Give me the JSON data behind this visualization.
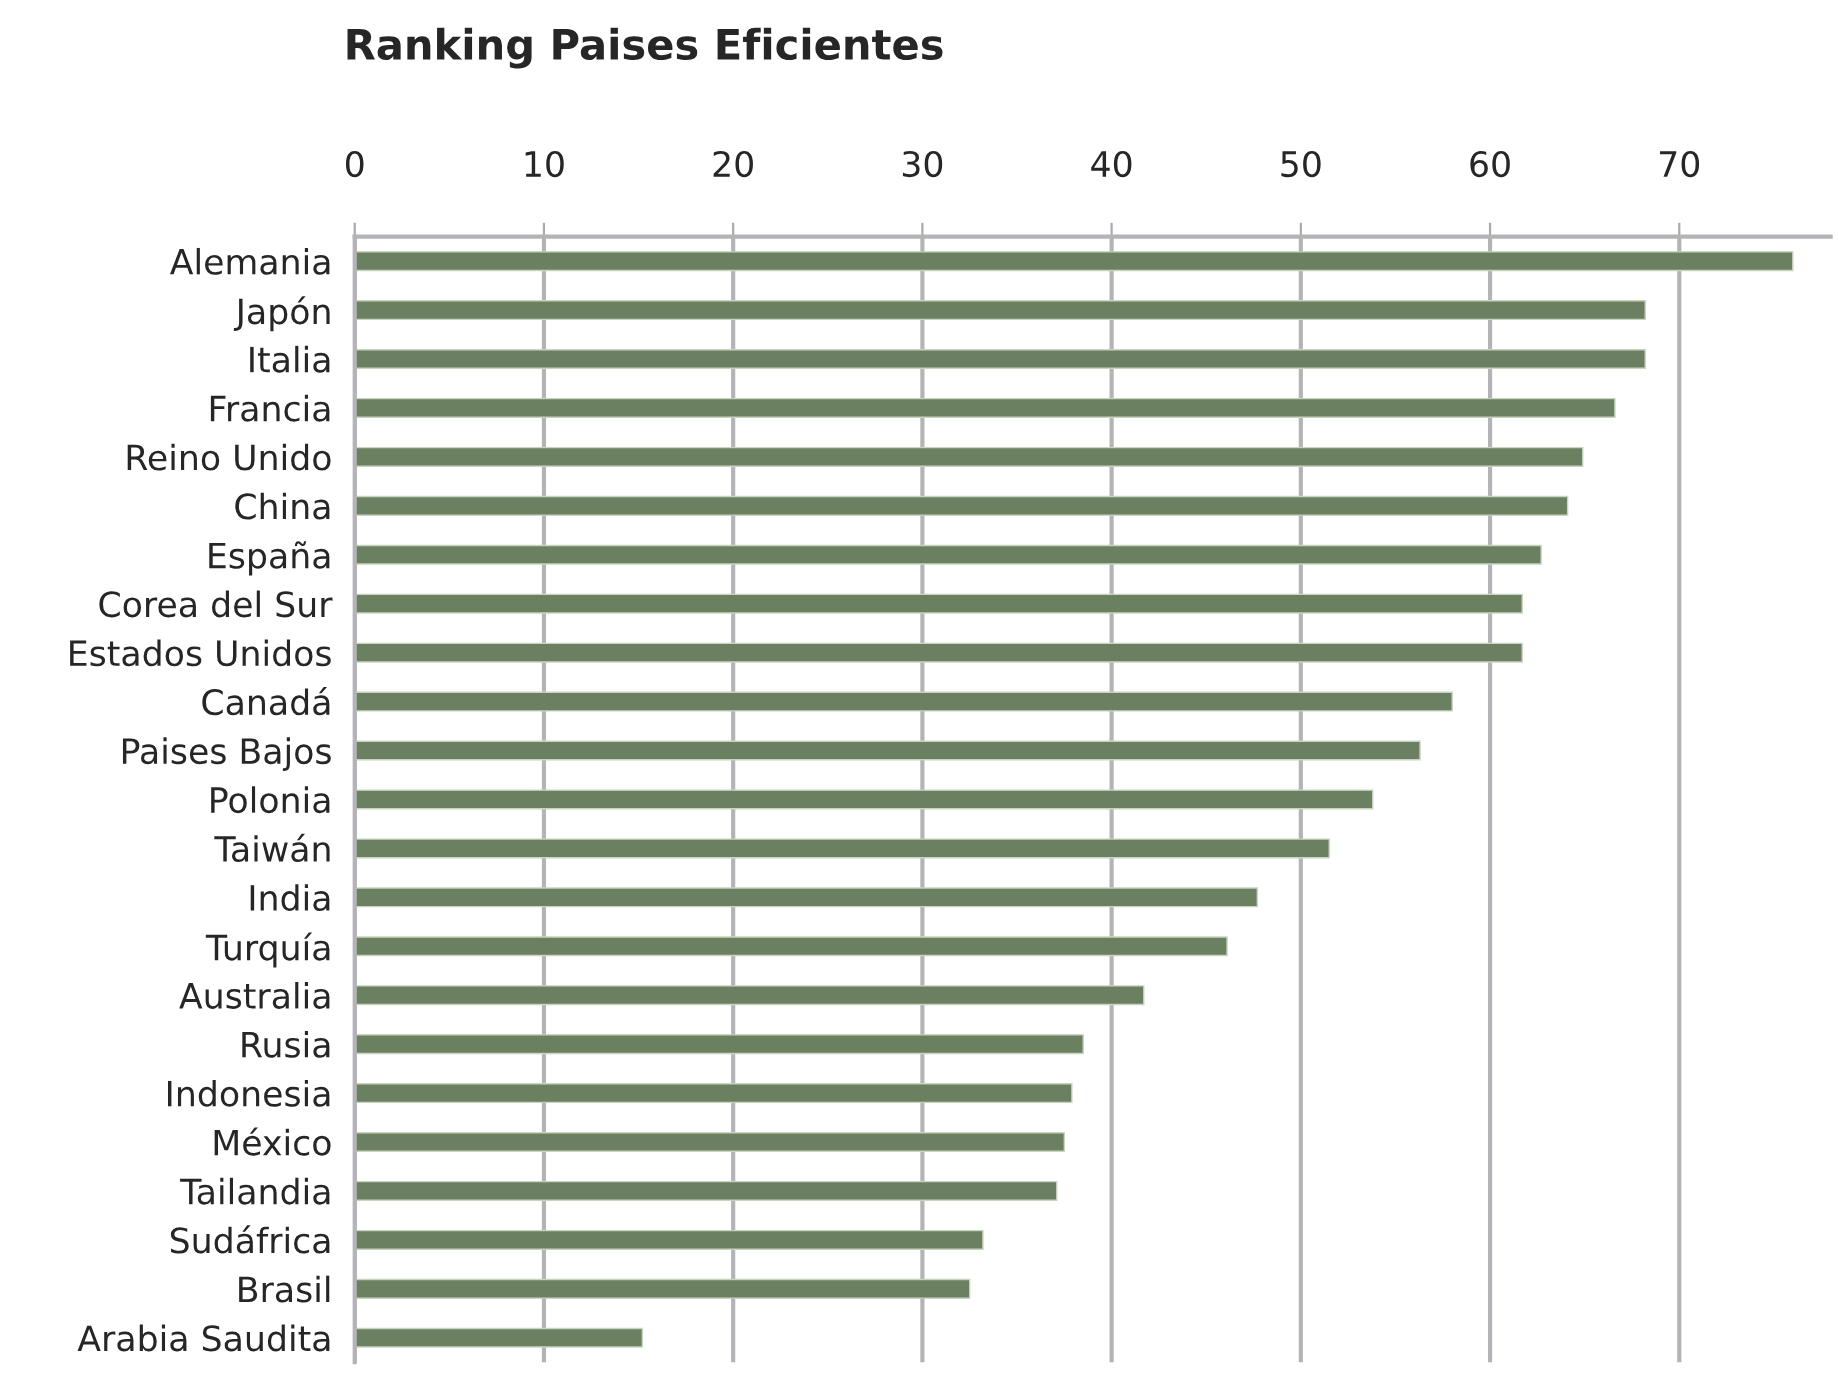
{
  "chart_data": {
    "type": "bar",
    "orientation": "horizontal",
    "title": "Ranking Paises Eficientes",
    "categories": [
      "Alemania",
      "Japón",
      "Italia",
      "Francia",
      "Reino Unido",
      "China",
      "España",
      "Corea del Sur",
      "Estados Unidos",
      "Canadá",
      "Paises Bajos",
      "Polonia",
      "Taiwán",
      "India",
      "Turquía",
      "Australia",
      "Rusia",
      "Indonesia",
      "México",
      "Tailandia",
      "Sudáfrica",
      "Brasil",
      "Arabia Saudita"
    ],
    "values": [
      76.0,
      68.2,
      68.2,
      66.6,
      64.9,
      64.1,
      62.7,
      61.7,
      61.7,
      58.0,
      56.3,
      53.8,
      51.5,
      47.7,
      46.1,
      41.7,
      38.5,
      37.9,
      37.5,
      37.1,
      33.2,
      32.5,
      15.2
    ],
    "color": "#6b8060",
    "xlim": [
      0,
      78
    ],
    "xticks": [
      0,
      10,
      20,
      30,
      40,
      50,
      60,
      70
    ],
    "grid": "x",
    "legend": false
  }
}
